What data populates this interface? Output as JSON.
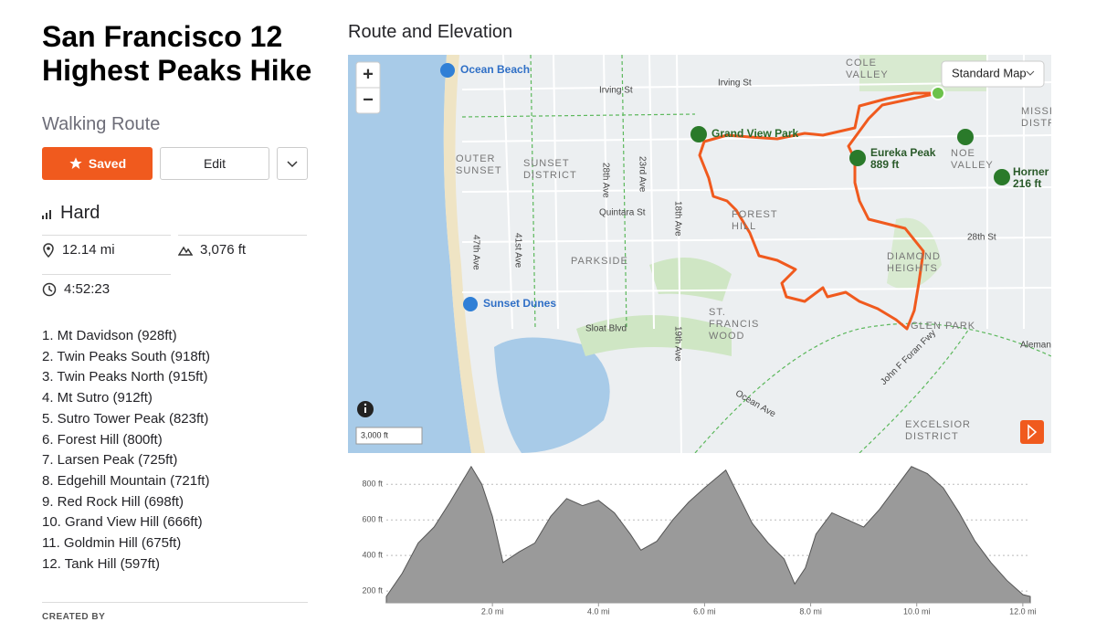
{
  "header": {
    "title": "San Francisco 12 Highest Peaks Hike",
    "subtitle": "Walking Route"
  },
  "buttons": {
    "saved": "Saved",
    "edit": "Edit"
  },
  "stats": {
    "difficulty": "Hard",
    "distance": "12.14 mi",
    "elevation_gain": "3,076 ft",
    "time": "4:52:23"
  },
  "peaks": [
    "1. Mt Davidson (928ft)",
    "2. Twin Peaks South (918ft)",
    "3. Twin Peaks North (915ft)",
    "4. Mt Sutro (912ft)",
    "5. Sutro Tower Peak (823ft)",
    "6. Forest Hill (800ft)",
    "7. Larsen Peak (725ft)",
    "8. Edgehill Mountain (721ft)",
    "9. Red Rock Hill (698ft)",
    "10. Grand View Hill (666ft)",
    "11. Goldmin Hill (675ft)",
    "12. Tank Hill (597ft)"
  ],
  "created_by": "CREATED BY",
  "map": {
    "title": "Route and Elevation",
    "map_style": "Standard Map",
    "zoom_in": "+",
    "zoom_out": "−",
    "scale": "3,000 ft",
    "labels": [
      [
        "Ocean Beach"
      ],
      [
        "Irving St"
      ],
      [
        "Irving St"
      ],
      [
        "COLE",
        "VALLEY"
      ],
      [
        "MISSI",
        "DISTR"
      ],
      [
        "Grand View Park"
      ],
      [
        "Eureka Peak",
        "889 ft"
      ],
      [
        "NOE",
        "VALLEY"
      ],
      [
        "Horner",
        "216 ft"
      ],
      [
        "OUTER",
        "SUNSET"
      ],
      [
        "SUNSET",
        "DISTRICT"
      ],
      [
        "28th Ave"
      ],
      [
        "23rd Ave"
      ],
      [
        "18th Ave"
      ],
      [
        "Quintara St"
      ],
      [
        "FOREST",
        "HILL"
      ],
      [
        "47th Ave"
      ],
      [
        "41st Ave"
      ],
      [
        "PARKSIDE"
      ],
      [
        "28th St"
      ],
      [
        "DIAMOND",
        "HEIGHTS"
      ],
      [
        "Sunset Dunes"
      ],
      [
        "Sloat Blvd"
      ],
      [
        "19th Ave"
      ],
      [
        "ST.",
        "FRANCIS",
        "WOOD"
      ],
      [
        "GLEN PARK"
      ],
      [
        "Alemany B"
      ],
      [
        "Ocean Ave"
      ],
      [
        "John F Foran Fwy"
      ],
      [
        "EXCELSIOR",
        "DISTRICT"
      ]
    ]
  },
  "chart_data": {
    "type": "area",
    "color": "#9a9a9a",
    "x": [
      0,
      0.3,
      0.6,
      0.9,
      1.2,
      1.4,
      1.6,
      1.8,
      2.0,
      2.2,
      2.5,
      2.8,
      3.1,
      3.4,
      3.7,
      4.0,
      4.3,
      4.6,
      4.8,
      5.1,
      5.4,
      5.7,
      6.0,
      6.2,
      6.4,
      6.6,
      6.9,
      7.2,
      7.5,
      7.7,
      7.9,
      8.1,
      8.4,
      8.7,
      9.0,
      9.3,
      9.6,
      9.9,
      10.2,
      10.5,
      10.8,
      11.1,
      11.4,
      11.7,
      12.0,
      12.14
    ],
    "values": [
      170,
      300,
      470,
      560,
      700,
      800,
      900,
      800,
      620,
      360,
      420,
      470,
      620,
      720,
      680,
      710,
      640,
      520,
      430,
      480,
      600,
      700,
      780,
      830,
      880,
      760,
      580,
      470,
      380,
      240,
      330,
      520,
      640,
      600,
      560,
      660,
      780,
      900,
      860,
      780,
      640,
      480,
      360,
      260,
      180,
      170
    ],
    "xlim": [
      0,
      12.14
    ],
    "ylim": [
      134,
      940
    ],
    "xticks": [
      {
        "value": 2,
        "label": "2.0 mi"
      },
      {
        "value": 4,
        "label": "4.0 mi"
      },
      {
        "value": 6,
        "label": "6.0 mi"
      },
      {
        "value": 8,
        "label": "8.0 mi"
      },
      {
        "value": 10,
        "label": "10.0 mi"
      },
      {
        "value": 12,
        "label": "12.0 mi"
      }
    ],
    "yticks": [
      {
        "value": 200,
        "label": "200 ft"
      },
      {
        "value": 400,
        "label": "400 ft"
      },
      {
        "value": 600,
        "label": "600 ft"
      },
      {
        "value": 800,
        "label": "800 ft"
      }
    ],
    "grid": true
  }
}
